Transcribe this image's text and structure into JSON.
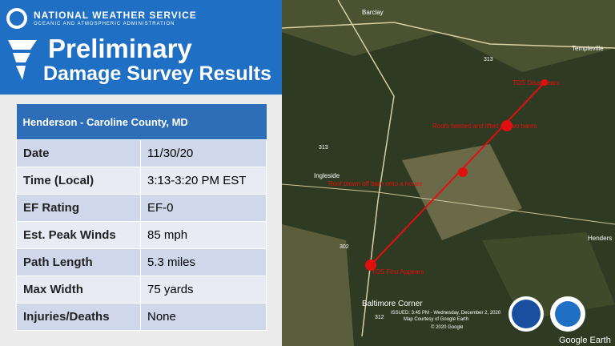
{
  "header": {
    "agency": "NATIONAL WEATHER SERVICE",
    "subagency": "OCEANIC AND ATMOSPHERIC ADMINISTRATION",
    "title_line1": "Preliminary",
    "title_line2": "Damage Survey Results"
  },
  "table": {
    "heading": "Henderson - Caroline County, MD",
    "rows": [
      [
        "Date",
        "11/30/20"
      ],
      [
        "Time (Local)",
        "3:13-3:20 PM EST"
      ],
      [
        "EF Rating",
        "EF-0"
      ],
      [
        "Est. Peak Winds",
        "85 mph"
      ],
      [
        "Path Length",
        "5.3 miles"
      ],
      [
        "Max Width",
        "75 yards"
      ],
      [
        "Injuries/Deaths",
        "None"
      ]
    ]
  },
  "map": {
    "annotations": [
      "TDS Disappears",
      "Roofs twisted and lifted off two barns",
      "Roof blown off barn onto a house",
      "TDS First Appears"
    ],
    "places": [
      "Barclay",
      "Templeville",
      "Ingleside",
      "Henders",
      "Baltimore Corner"
    ],
    "routes": [
      "313",
      "313",
      "312",
      "302"
    ],
    "issued": "ISSUED: 3:45 PM - Wednesday, December 2, 2020",
    "courtesy": "Map Courtesy of Google Earth",
    "copyright": "© 2020 Google",
    "google_earth": "Google Earth",
    "noaa": "NOAA"
  }
}
